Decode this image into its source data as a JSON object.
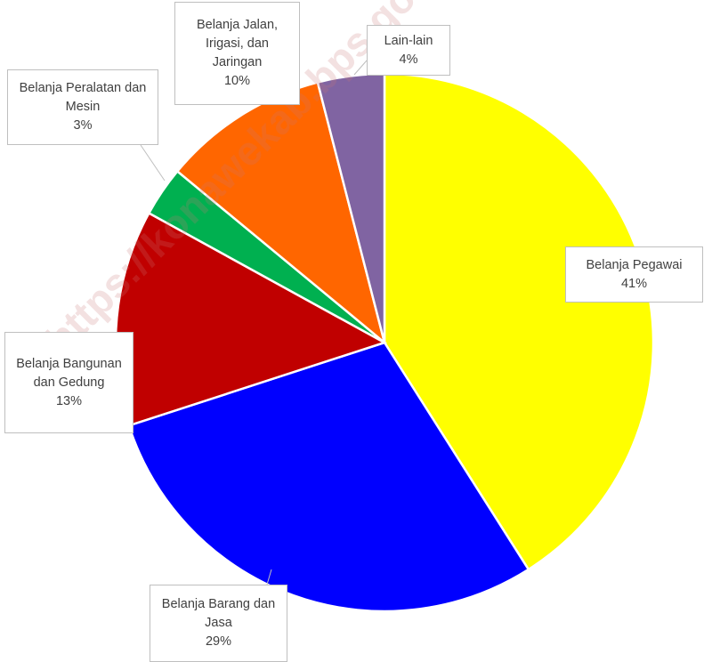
{
  "chart_data": {
    "type": "pie",
    "categories": [
      "Belanja Pegawai",
      "Belanja Barang dan Jasa",
      "Belanja Bangunan dan Gedung",
      "Belanja Peralatan dan Mesin",
      "Belanja Jalan, Irigasi, dan Jaringan",
      "Lain-lain"
    ],
    "values": [
      41,
      29,
      13,
      3,
      10,
      4
    ],
    "value_labels": [
      "41%",
      "29%",
      "13%",
      "3%",
      "10%",
      "4%"
    ],
    "colors": [
      "#ffff00",
      "#0000ff",
      "#c00000",
      "#00b050",
      "#ff6600",
      "#8064a2"
    ],
    "watermark": "https://konawekab.bps.go.id"
  }
}
